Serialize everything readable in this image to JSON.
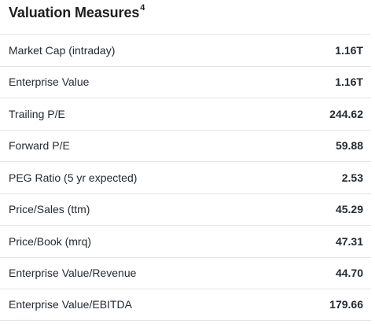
{
  "section": {
    "title": "Valuation Measures",
    "title_footnote": "4"
  },
  "rows": [
    {
      "label": "Market Cap (intraday)",
      "value": "1.16T"
    },
    {
      "label": "Enterprise Value",
      "value": "1.16T"
    },
    {
      "label": "Trailing P/E",
      "value": "244.62"
    },
    {
      "label": "Forward P/E",
      "value": "59.88"
    },
    {
      "label": "PEG Ratio (5 yr expected)",
      "value": "2.53"
    },
    {
      "label": "Price/Sales (ttm)",
      "value": "45.29"
    },
    {
      "label": "Price/Book (mrq)",
      "value": "47.31"
    },
    {
      "label": "Enterprise Value/Revenue",
      "value": "44.70"
    },
    {
      "label": "Enterprise Value/EBITDA",
      "value": "179.66"
    }
  ],
  "colors": {
    "text": "#232a31",
    "divider": "#e6e6e6",
    "background": "#ffffff"
  }
}
